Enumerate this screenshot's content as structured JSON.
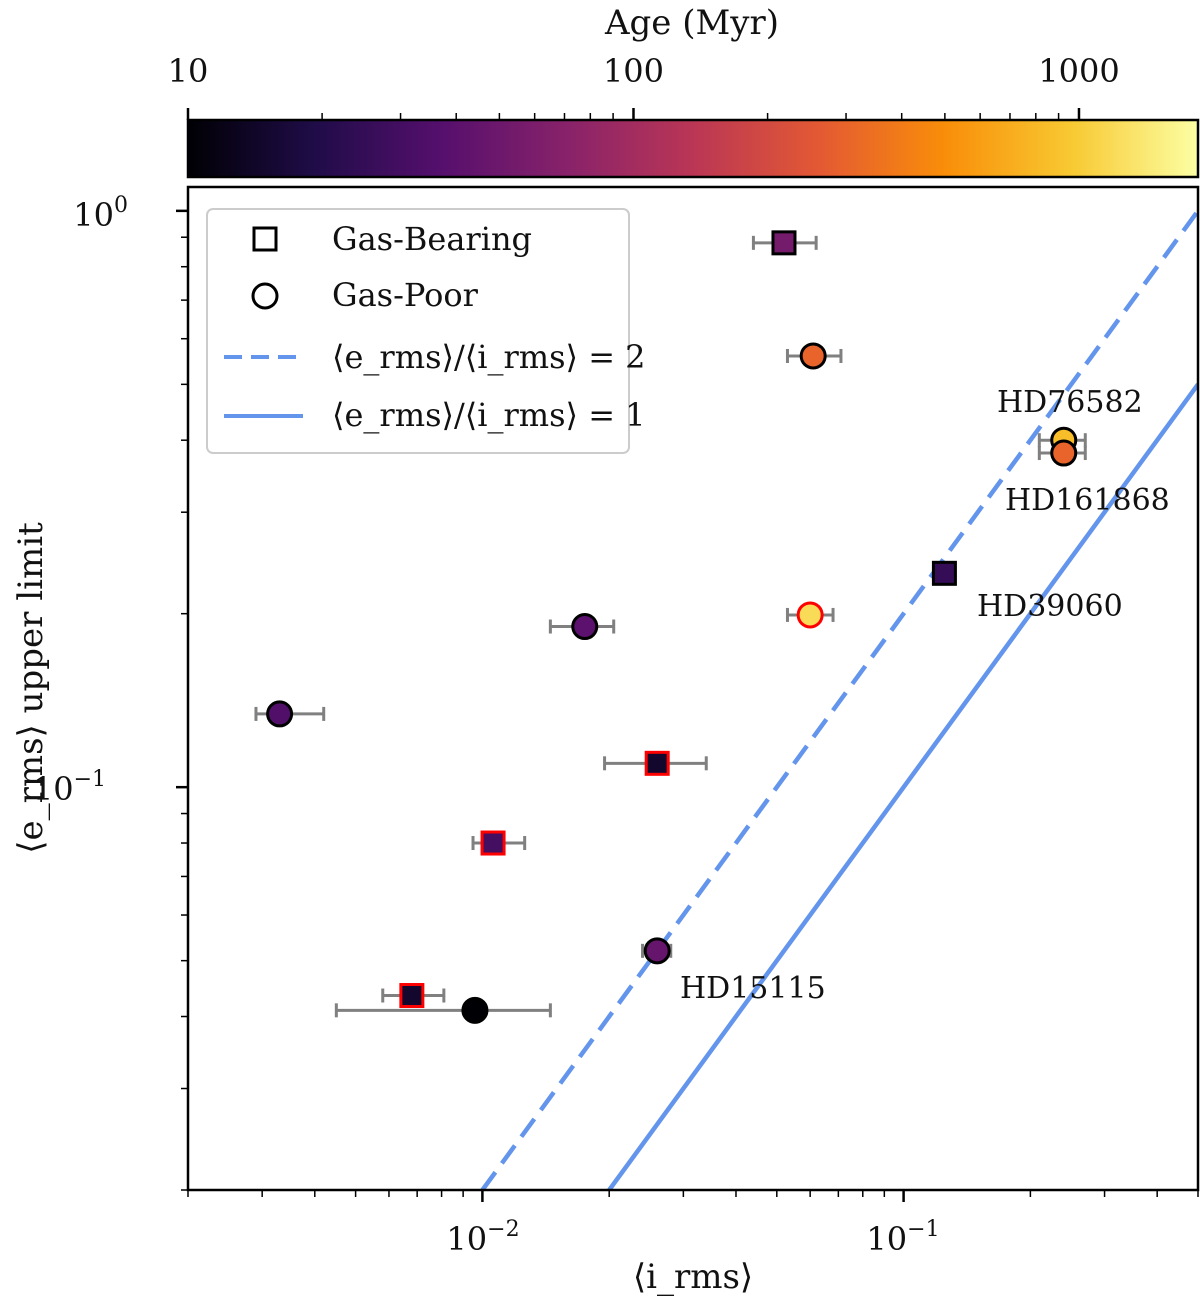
{
  "chart_data": {
    "type": "scatter",
    "title": "",
    "xlabel": "⟨i_rms⟩",
    "ylabel": "⟨e_rms⟩ upper limit",
    "xscale": "log",
    "yscale": "log",
    "xlim": [
      0.002,
      0.5
    ],
    "ylim": [
      0.02,
      1.1
    ],
    "x_ticks": [
      {
        "value": 0.01,
        "base": "10",
        "exp": "−2"
      },
      {
        "value": 0.1,
        "base": "10",
        "exp": "−1"
      }
    ],
    "y_ticks": [
      {
        "value": 1.0,
        "base": "10",
        "exp": "0"
      },
      {
        "value": 0.1,
        "base": "10",
        "exp": "−1"
      }
    ],
    "colorbar": {
      "label": "Age (Myr)",
      "scale": "log",
      "range": [
        10,
        1850
      ],
      "colormap": "inferno",
      "ticks": [
        {
          "value": 10,
          "label": "10"
        },
        {
          "value": 100,
          "label": "100"
        },
        {
          "value": 1000,
          "label": "1000"
        }
      ]
    },
    "lines": [
      {
        "name": "ratio2",
        "ratio": 2,
        "style": "dashed",
        "color": "#6495ED"
      },
      {
        "name": "ratio1",
        "ratio": 1,
        "style": "solid",
        "color": "#6495ED"
      }
    ],
    "legend": {
      "position": "top-left",
      "entries": [
        {
          "label": "Gas-Bearing",
          "marker": "square"
        },
        {
          "label": "Gas-Poor",
          "marker": "circle"
        },
        {
          "label": "⟨e_rms⟩/⟨i_rms⟩ = 2",
          "line": "dashed"
        },
        {
          "label": "⟨e_rms⟩/⟨i_rms⟩ = 1",
          "line": "solid"
        }
      ]
    },
    "points": [
      {
        "x": 0.052,
        "y": 0.88,
        "xerr": [
          0.044,
          0.062
        ],
        "marker": "square",
        "age": 55,
        "edge": "#000000"
      },
      {
        "x": 0.061,
        "y": 0.56,
        "xerr": [
          0.053,
          0.071
        ],
        "marker": "circle",
        "age": 300,
        "edge": "#000000"
      },
      {
        "x": 0.24,
        "y": 0.4,
        "xerr": [
          0.21,
          0.27
        ],
        "marker": "circle",
        "age": 850,
        "edge": "#000000",
        "label": "HD76582"
      },
      {
        "x": 0.24,
        "y": 0.38,
        "xerr": [
          0.21,
          0.27
        ],
        "marker": "circle",
        "age": 300,
        "edge": "#000000",
        "label": "HD161868"
      },
      {
        "x": 0.125,
        "y": 0.235,
        "marker": "square",
        "age": 25,
        "edge": "#000000",
        "label": "HD39060"
      },
      {
        "x": 0.0175,
        "y": 0.19,
        "xerr": [
          0.0145,
          0.0205
        ],
        "marker": "circle",
        "age": 40,
        "edge": "#000000"
      },
      {
        "x": 0.06,
        "y": 0.199,
        "xerr": [
          0.053,
          0.068
        ],
        "marker": "circle",
        "age": 1200,
        "edge": "#ff0000"
      },
      {
        "x": 0.0033,
        "y": 0.134,
        "xerr": [
          0.0029,
          0.0042
        ],
        "marker": "circle",
        "age": 35,
        "edge": "#000000"
      },
      {
        "x": 0.026,
        "y": 0.11,
        "xerr": [
          0.0195,
          0.034
        ],
        "marker": "square",
        "age": 15,
        "edge": "#ff0000"
      },
      {
        "x": 0.0106,
        "y": 0.08,
        "xerr": [
          0.0095,
          0.0126
        ],
        "marker": "square",
        "age": 30,
        "edge": "#ff0000"
      },
      {
        "x": 0.026,
        "y": 0.052,
        "xerr": [
          0.024,
          0.028
        ],
        "marker": "circle",
        "age": 45,
        "edge": "#000000",
        "label": "HD15115"
      },
      {
        "x": 0.0068,
        "y": 0.0435,
        "xerr": [
          0.0058,
          0.0081
        ],
        "marker": "square",
        "age": 15,
        "edge": "#ff0000"
      },
      {
        "x": 0.0096,
        "y": 0.041,
        "xerr": [
          0.0045,
          0.0145
        ],
        "marker": "circle",
        "age": 10,
        "edge": "#000000"
      }
    ]
  }
}
